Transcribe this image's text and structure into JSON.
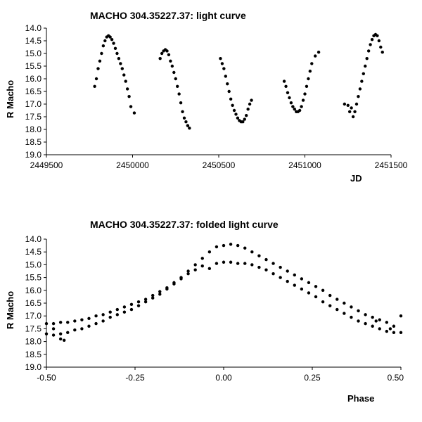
{
  "chart_data": [
    {
      "type": "scatter",
      "title": "MACHO 304.35227.37: light curve",
      "xlabel": "JD",
      "ylabel": "R Macho",
      "xlim": [
        2449500,
        2451500
      ],
      "ylim": [
        14.0,
        19.0
      ],
      "y_inverted": true,
      "x_ticks": [
        2449500,
        2450000,
        2450500,
        2451000,
        2451500
      ],
      "x_tick_labels": [
        "2449500",
        "2450000",
        "2450500",
        "2451000",
        "2451500"
      ],
      "y_ticks": [
        14.0,
        14.5,
        15.0,
        15.5,
        16.0,
        16.5,
        17.0,
        17.5,
        18.0,
        18.5,
        19.0
      ],
      "y_tick_labels": [
        "14.0",
        "14.5",
        "15.0",
        "15.5",
        "16.0",
        "16.5",
        "17.0",
        "17.5",
        "18.0",
        "18.5",
        "19.0"
      ],
      "grid": false,
      "series": [
        {
          "color": "#000000",
          "points": [
            [
              2449780,
              16.3
            ],
            [
              2449790,
              16.0
            ],
            [
              2449800,
              15.6
            ],
            [
              2449810,
              15.3
            ],
            [
              2449820,
              15.0
            ],
            [
              2449830,
              14.7
            ],
            [
              2449840,
              14.5
            ],
            [
              2449850,
              14.35
            ],
            [
              2449860,
              14.3
            ],
            [
              2449870,
              14.35
            ],
            [
              2449880,
              14.45
            ],
            [
              2449890,
              14.6
            ],
            [
              2449900,
              14.8
            ],
            [
              2449910,
              15.0
            ],
            [
              2449920,
              15.2
            ],
            [
              2449930,
              15.4
            ],
            [
              2449940,
              15.6
            ],
            [
              2449950,
              15.85
            ],
            [
              2449960,
              16.1
            ],
            [
              2449970,
              16.4
            ],
            [
              2449980,
              16.7
            ],
            [
              2449990,
              17.1
            ],
            [
              2450010,
              17.35
            ],
            [
              2450160,
              15.2
            ],
            [
              2450170,
              15.0
            ],
            [
              2450180,
              14.9
            ],
            [
              2450190,
              14.85
            ],
            [
              2450200,
              14.9
            ],
            [
              2450210,
              15.05
            ],
            [
              2450220,
              15.3
            ],
            [
              2450230,
              15.5
            ],
            [
              2450240,
              15.75
            ],
            [
              2450250,
              16.0
            ],
            [
              2450260,
              16.3
            ],
            [
              2450270,
              16.6
            ],
            [
              2450280,
              16.95
            ],
            [
              2450290,
              17.3
            ],
            [
              2450300,
              17.55
            ],
            [
              2450310,
              17.7
            ],
            [
              2450320,
              17.85
            ],
            [
              2450330,
              17.95
            ],
            [
              2450510,
              15.2
            ],
            [
              2450520,
              15.4
            ],
            [
              2450530,
              15.6
            ],
            [
              2450540,
              15.9
            ],
            [
              2450550,
              16.2
            ],
            [
              2450560,
              16.5
            ],
            [
              2450570,
              16.8
            ],
            [
              2450580,
              17.05
            ],
            [
              2450590,
              17.25
            ],
            [
              2450600,
              17.4
            ],
            [
              2450610,
              17.55
            ],
            [
              2450620,
              17.65
            ],
            [
              2450630,
              17.7
            ],
            [
              2450640,
              17.7
            ],
            [
              2450650,
              17.6
            ],
            [
              2450660,
              17.45
            ],
            [
              2450670,
              17.2
            ],
            [
              2450680,
              17.0
            ],
            [
              2450690,
              16.85
            ],
            [
              2450880,
              16.1
            ],
            [
              2450890,
              16.3
            ],
            [
              2450900,
              16.55
            ],
            [
              2450910,
              16.75
            ],
            [
              2450920,
              16.95
            ],
            [
              2450930,
              17.1
            ],
            [
              2450940,
              17.2
            ],
            [
              2450950,
              17.3
            ],
            [
              2450960,
              17.3
            ],
            [
              2450970,
              17.25
            ],
            [
              2450980,
              17.1
            ],
            [
              2450990,
              16.85
            ],
            [
              2451000,
              16.6
            ],
            [
              2451010,
              16.3
            ],
            [
              2451020,
              16.0
            ],
            [
              2451030,
              15.7
            ],
            [
              2451040,
              15.4
            ],
            [
              2451060,
              15.1
            ],
            [
              2451080,
              14.95
            ],
            [
              2451230,
              17.0
            ],
            [
              2451250,
              17.05
            ],
            [
              2451260,
              17.3
            ],
            [
              2451270,
              17.15
            ],
            [
              2451280,
              17.5
            ],
            [
              2451290,
              17.3
            ],
            [
              2451300,
              17.0
            ],
            [
              2451310,
              16.7
            ],
            [
              2451320,
              16.4
            ],
            [
              2451330,
              16.1
            ],
            [
              2451340,
              15.8
            ],
            [
              2451350,
              15.5
            ],
            [
              2451360,
              15.2
            ],
            [
              2451370,
              14.9
            ],
            [
              2451380,
              14.65
            ],
            [
              2451390,
              14.45
            ],
            [
              2451400,
              14.3
            ],
            [
              2451410,
              14.25
            ],
            [
              2451420,
              14.3
            ],
            [
              2451430,
              14.5
            ],
            [
              2451440,
              14.75
            ],
            [
              2451450,
              14.95
            ]
          ]
        }
      ]
    },
    {
      "type": "scatter",
      "title": "MACHO 304.35227.37: folded light curve",
      "xlabel": "Phase",
      "ylabel": "R Macho",
      "xlim": [
        -0.5,
        0.5
      ],
      "ylim": [
        14.0,
        19.0
      ],
      "y_inverted": true,
      "x_ticks": [
        -0.5,
        -0.25,
        0.0,
        0.25,
        0.5
      ],
      "x_tick_labels": [
        "-0.50",
        "-0.25",
        "0.00",
        "0.25",
        "0.50"
      ],
      "y_ticks": [
        14.0,
        14.5,
        15.0,
        15.5,
        16.0,
        16.5,
        17.0,
        17.5,
        18.0,
        18.5,
        19.0
      ],
      "y_tick_labels": [
        "14.0",
        "14.5",
        "15.0",
        "15.5",
        "16.0",
        "16.5",
        "17.0",
        "17.5",
        "18.0",
        "18.5",
        "19.0"
      ],
      "grid": false,
      "series": [
        {
          "color": "#000000",
          "points": [
            [
              -0.5,
              17.3
            ],
            [
              -0.48,
              17.3
            ],
            [
              -0.46,
              17.25
            ],
            [
              -0.44,
              17.25
            ],
            [
              -0.42,
              17.2
            ],
            [
              -0.4,
              17.15
            ],
            [
              -0.38,
              17.1
            ],
            [
              -0.36,
              17.0
            ],
            [
              -0.34,
              16.95
            ],
            [
              -0.32,
              16.85
            ],
            [
              -0.3,
              16.75
            ],
            [
              -0.28,
              16.65
            ],
            [
              -0.26,
              16.55
            ],
            [
              -0.24,
              16.45
            ],
            [
              -0.22,
              16.35
            ],
            [
              -0.2,
              16.2
            ],
            [
              -0.18,
              16.05
            ],
            [
              -0.16,
              15.9
            ],
            [
              -0.14,
              15.7
            ],
            [
              -0.12,
              15.5
            ],
            [
              -0.1,
              15.25
            ],
            [
              -0.08,
              15.0
            ],
            [
              -0.06,
              14.75
            ],
            [
              -0.04,
              14.5
            ],
            [
              -0.02,
              14.3
            ],
            [
              0.0,
              14.25
            ],
            [
              0.02,
              14.2
            ],
            [
              0.04,
              14.25
            ],
            [
              0.06,
              14.35
            ],
            [
              0.08,
              14.5
            ],
            [
              0.1,
              14.65
            ],
            [
              0.12,
              14.8
            ],
            [
              0.14,
              14.95
            ],
            [
              0.16,
              15.1
            ],
            [
              0.18,
              15.25
            ],
            [
              0.2,
              15.4
            ],
            [
              0.22,
              15.55
            ],
            [
              0.24,
              15.7
            ],
            [
              0.26,
              15.85
            ],
            [
              0.28,
              16.0
            ],
            [
              0.3,
              16.2
            ],
            [
              0.32,
              16.35
            ],
            [
              0.34,
              16.5
            ],
            [
              0.36,
              16.65
            ],
            [
              0.38,
              16.8
            ],
            [
              0.4,
              16.95
            ],
            [
              0.42,
              17.05
            ],
            [
              0.44,
              17.15
            ],
            [
              0.46,
              17.25
            ],
            [
              0.48,
              17.4
            ],
            [
              0.5,
              17.0
            ],
            [
              -0.5,
              17.7
            ],
            [
              -0.48,
              17.75
            ],
            [
              -0.46,
              17.7
            ],
            [
              -0.44,
              17.65
            ],
            [
              -0.42,
              17.55
            ],
            [
              -0.4,
              17.5
            ],
            [
              -0.38,
              17.4
            ],
            [
              -0.36,
              17.3
            ],
            [
              -0.34,
              17.2
            ],
            [
              -0.32,
              17.05
            ],
            [
              -0.3,
              16.95
            ],
            [
              -0.28,
              16.85
            ],
            [
              -0.26,
              16.75
            ],
            [
              -0.24,
              16.6
            ],
            [
              -0.22,
              16.45
            ],
            [
              -0.2,
              16.3
            ],
            [
              -0.18,
              16.15
            ],
            [
              -0.16,
              15.95
            ],
            [
              -0.14,
              15.75
            ],
            [
              -0.12,
              15.55
            ],
            [
              -0.1,
              15.35
            ],
            [
              -0.08,
              15.2
            ],
            [
              -0.06,
              15.05
            ],
            [
              -0.04,
              15.15
            ],
            [
              -0.02,
              14.95
            ],
            [
              0.0,
              14.9
            ],
            [
              0.02,
              14.9
            ],
            [
              0.04,
              14.95
            ],
            [
              0.06,
              14.95
            ],
            [
              0.08,
              15.0
            ],
            [
              0.1,
              15.1
            ],
            [
              0.12,
              15.2
            ],
            [
              0.14,
              15.35
            ],
            [
              0.16,
              15.5
            ],
            [
              0.18,
              15.65
            ],
            [
              0.2,
              15.8
            ],
            [
              0.22,
              15.95
            ],
            [
              0.24,
              16.1
            ],
            [
              0.26,
              16.25
            ],
            [
              0.28,
              16.45
            ],
            [
              0.3,
              16.6
            ],
            [
              0.32,
              16.75
            ],
            [
              0.34,
              16.9
            ],
            [
              0.36,
              17.05
            ],
            [
              0.38,
              17.2
            ],
            [
              0.4,
              17.3
            ],
            [
              0.42,
              17.4
            ],
            [
              0.44,
              17.5
            ],
            [
              0.46,
              17.6
            ],
            [
              0.48,
              17.65
            ],
            [
              0.5,
              17.65
            ],
            [
              -0.48,
              17.5
            ],
            [
              -0.45,
              17.95
            ],
            [
              -0.46,
              17.9
            ],
            [
              0.43,
              17.2
            ],
            [
              0.47,
              17.5
            ]
          ]
        }
      ]
    }
  ]
}
